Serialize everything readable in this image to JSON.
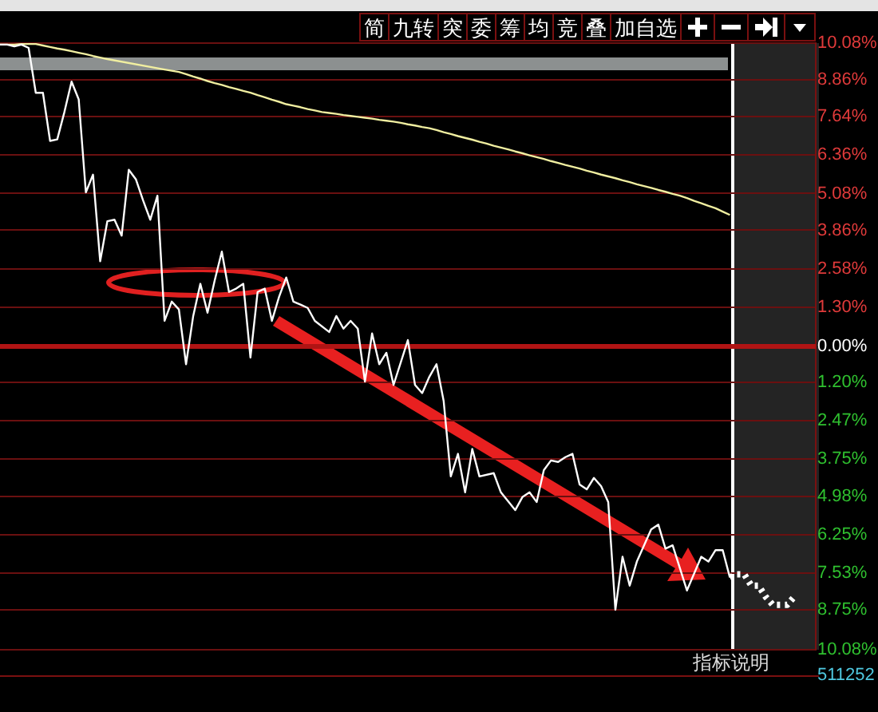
{
  "chart_data": {
    "type": "line",
    "categories": [
      null,
      null,
      null,
      null,
      null,
      null,
      null,
      null,
      null,
      null,
      null,
      null,
      null,
      null,
      null,
      null,
      null,
      null,
      null,
      null,
      null,
      null,
      null,
      null,
      null,
      null,
      null,
      null,
      null,
      null,
      null,
      null,
      null,
      null,
      null,
      null,
      null,
      null,
      null,
      null,
      null,
      null,
      null,
      null,
      null,
      null,
      null,
      null,
      null,
      null,
      null,
      null,
      null,
      null,
      null,
      null,
      null,
      null,
      null,
      null,
      null,
      null,
      null,
      null,
      null,
      null,
      null,
      null,
      null,
      null,
      null,
      null,
      null,
      null,
      null,
      null,
      null,
      null,
      null,
      null,
      null,
      null,
      null,
      null,
      null,
      null,
      null,
      null,
      null,
      null,
      null,
      null,
      null,
      null,
      null,
      null,
      null,
      null,
      null,
      null,
      null,
      null,
      null,
      null,
      null,
      null,
      null,
      null,
      null,
      null,
      null,
      null,
      null,
      null,
      null
    ],
    "series": [
      {
        "color": "#ffffff",
        "values": [
          10.03,
          10.03,
          9.97,
          10.03,
          9.92,
          8.43,
          8.43,
          6.83,
          6.88,
          7.79,
          8.8,
          8.21,
          5.12,
          5.71,
          2.83,
          4.16,
          4.21,
          3.68,
          5.87,
          5.55,
          4.85,
          4.21,
          5.01,
          0.85,
          1.49,
          1.23,
          -0.59,
          1.01,
          2.08,
          1.12,
          2.19,
          3.15,
          1.81,
          1.92,
          2.08,
          -0.37,
          1.81,
          1.92,
          0.85,
          1.65,
          2.29,
          1.49,
          1.39,
          1.28,
          0.85,
          null,
          0.48,
          1.01,
          0.59,
          0.85,
          0.59,
          -1.17,
          0.43,
          -0.59,
          -0.21,
          -1.28,
          null,
          0.21,
          -1.28,
          -1.55,
          -1.01,
          -0.59,
          -1.81,
          -4.32,
          -3.57,
          -4.85,
          -3.41,
          -4.32,
          null,
          -4.21,
          -4.85,
          null,
          -5.44,
          -5.01,
          -4.85,
          -5.17,
          -4.11,
          -3.79,
          -3.84,
          -3.68,
          -3.57,
          -4.59,
          -4.75,
          -4.37,
          -4.64,
          -5.17,
          -8.75,
          -6.99,
          -7.95,
          -7.15,
          null,
          -6.08,
          -5.92,
          -6.72,
          -6.61,
          null,
          -8.11,
          null,
          -6.99,
          -7.15,
          -6.77,
          -6.77,
          -7.68,
          null,
          null,
          null,
          null,
          null,
          null,
          null,
          null,
          null,
          null,
          null,
          null
        ]
      },
      {
        "color": "#f0eea0",
        "values": [
          10.03,
          10.03,
          10.03,
          10.05,
          10.06,
          10.05,
          10.0,
          9.95,
          9.9,
          9.86,
          9.81,
          9.76,
          9.71,
          9.65,
          9.6,
          9.55,
          null,
          null,
          null,
          null,
          null,
          null,
          null,
          9.2,
          9.16,
          9.12,
          9.05,
          8.97,
          8.9,
          8.82,
          8.75,
          8.69,
          8.62,
          8.56,
          8.49,
          8.43,
          8.35,
          8.28,
          8.2,
          8.13,
          8.05,
          8.0,
          7.95,
          7.89,
          7.84,
          7.79,
          7.76,
          7.73,
          7.69,
          7.66,
          7.63,
          7.6,
          7.57,
          7.53,
          7.5,
          7.47,
          7.43,
          7.38,
          7.34,
          7.29,
          7.25,
          7.19,
          7.12,
          7.06,
          6.99,
          6.93,
          6.87,
          6.8,
          6.74,
          6.67,
          6.61,
          6.55,
          6.48,
          6.42,
          6.35,
          6.29,
          6.23,
          6.16,
          6.1,
          6.03,
          5.97,
          5.91,
          5.84,
          5.78,
          5.71,
          5.65,
          5.59,
          5.52,
          5.46,
          5.39,
          5.33,
          5.27,
          5.2,
          5.14,
          5.07,
          5.01,
          4.93,
          4.84,
          4.76,
          4.67,
          4.59,
          4.48,
          4.37,
          null,
          null,
          null,
          null,
          null,
          null,
          null,
          null,
          null,
          null,
          null,
          null
        ]
      },
      {
        "color": "#ffffff",
        "line_style": "dotted",
        "values": [
          null,
          null,
          null,
          null,
          null,
          null,
          null,
          null,
          null,
          null,
          null,
          null,
          null,
          null,
          null,
          null,
          null,
          null,
          null,
          null,
          null,
          null,
          null,
          null,
          null,
          null,
          null,
          null,
          null,
          null,
          null,
          null,
          null,
          null,
          null,
          null,
          null,
          null,
          null,
          null,
          null,
          null,
          null,
          null,
          null,
          null,
          null,
          null,
          null,
          null,
          null,
          null,
          null,
          null,
          null,
          null,
          null,
          null,
          null,
          null,
          null,
          null,
          null,
          null,
          null,
          null,
          null,
          null,
          null,
          null,
          null,
          null,
          null,
          null,
          null,
          null,
          null,
          null,
          null,
          null,
          null,
          null,
          null,
          null,
          null,
          null,
          null,
          null,
          null,
          null,
          null,
          null,
          null,
          null,
          null,
          null,
          null,
          null,
          null,
          null,
          null,
          null,
          -7.68,
          -7.57,
          -7.57,
          -7.95,
          -7.95,
          -8.32,
          -8.59,
          -8.59,
          -8.59,
          -8.32,
          null,
          null,
          null
        ]
      }
    ],
    "ylim": [
      -10.08,
      10.08
    ],
    "yticks": [
      {
        "value": 10.08,
        "label": "10.08%"
      },
      {
        "value": 8.86,
        "label": "8.86%"
      },
      {
        "value": 7.64,
        "label": "7.64%"
      },
      {
        "value": 6.36,
        "label": "6.36%"
      },
      {
        "value": 5.08,
        "label": "5.08%"
      },
      {
        "value": 3.86,
        "label": "3.86%"
      },
      {
        "value": 2.58,
        "label": "2.58%"
      },
      {
        "value": 1.3,
        "label": "1.30%"
      },
      {
        "value": 0,
        "label": "0.00%"
      },
      {
        "value": -1.2,
        "label": "1.20%"
      },
      {
        "value": -2.47,
        "label": "2.47%"
      },
      {
        "value": -3.75,
        "label": "3.75%"
      },
      {
        "value": -4.98,
        "label": "4.98%"
      },
      {
        "value": -6.25,
        "label": "6.25%"
      },
      {
        "value": -7.53,
        "label": "7.53%"
      },
      {
        "value": -8.75,
        "label": "8.75%"
      },
      {
        "value": -10.08,
        "label": "10.08%"
      }
    ],
    "grid": "y",
    "ref_lines": [
      {
        "axis": "y",
        "value": 0,
        "color": "#b01414"
      }
    ],
    "legend": false,
    "tick_labels": "y",
    "marker": "none",
    "annotations": [
      "简",
      "九转",
      "突",
      "委",
      "筹",
      "均",
      "竞",
      "叠",
      "加自选",
      "指标说明",
      "511252"
    ]
  }
}
